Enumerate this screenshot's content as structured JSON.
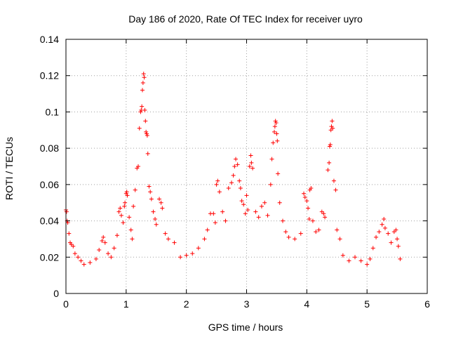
{
  "chart_data": {
    "type": "scatter",
    "title": "Day 186 of 2020, Rate Of TEC Index for receiver uyro",
    "xlabel": "GPS time / hours",
    "ylabel": "ROTI / TECUs",
    "xlim": [
      0,
      6
    ],
    "ylim": [
      0,
      0.14
    ],
    "x_ticks": [
      0,
      1,
      2,
      3,
      4,
      5,
      6
    ],
    "x_tick_labels": [
      "0",
      "1",
      "2",
      "3",
      "4",
      "5",
      "6"
    ],
    "y_ticks": [
      0,
      0.02,
      0.04,
      0.06,
      0.08,
      0.1,
      0.12,
      0.14
    ],
    "y_tick_labels": [
      "0",
      "0.02",
      "0.04",
      "0.06",
      "0.08",
      "0.1",
      "0.12",
      "0.14"
    ],
    "grid": true,
    "marker": "+",
    "color": "#ff0000",
    "series": [
      {
        "name": "ROTI",
        "points": [
          [
            0.0,
            0.046
          ],
          [
            0.01,
            0.045
          ],
          [
            0.02,
            0.04
          ],
          [
            0.03,
            0.039
          ],
          [
            0.05,
            0.033
          ],
          [
            0.07,
            0.028
          ],
          [
            0.09,
            0.027
          ],
          [
            0.12,
            0.026
          ],
          [
            0.15,
            0.022
          ],
          [
            0.2,
            0.02
          ],
          [
            0.25,
            0.018
          ],
          [
            0.3,
            0.016
          ],
          [
            0.4,
            0.017
          ],
          [
            0.5,
            0.019
          ],
          [
            0.55,
            0.024
          ],
          [
            0.6,
            0.029
          ],
          [
            0.62,
            0.031
          ],
          [
            0.65,
            0.028
          ],
          [
            0.7,
            0.022
          ],
          [
            0.75,
            0.02
          ],
          [
            0.8,
            0.025
          ],
          [
            0.85,
            0.032
          ],
          [
            0.88,
            0.045
          ],
          [
            0.9,
            0.047
          ],
          [
            0.92,
            0.043
          ],
          [
            0.95,
            0.039
          ],
          [
            0.97,
            0.048
          ],
          [
            0.98,
            0.05
          ],
          [
            1.0,
            0.055
          ],
          [
            1.01,
            0.056
          ],
          [
            1.02,
            0.054
          ],
          [
            1.05,
            0.042
          ],
          [
            1.08,
            0.035
          ],
          [
            1.1,
            0.03
          ],
          [
            1.12,
            0.048
          ],
          [
            1.15,
            0.057
          ],
          [
            1.18,
            0.069
          ],
          [
            1.2,
            0.07
          ],
          [
            1.22,
            0.091
          ],
          [
            1.24,
            0.1
          ],
          [
            1.25,
            0.101
          ],
          [
            1.26,
            0.103
          ],
          [
            1.27,
            0.112
          ],
          [
            1.28,
            0.116
          ],
          [
            1.29,
            0.121
          ],
          [
            1.3,
            0.119
          ],
          [
            1.31,
            0.101
          ],
          [
            1.32,
            0.095
          ],
          [
            1.33,
            0.089
          ],
          [
            1.34,
            0.088
          ],
          [
            1.35,
            0.087
          ],
          [
            1.36,
            0.077
          ],
          [
            1.38,
            0.059
          ],
          [
            1.4,
            0.056
          ],
          [
            1.42,
            0.052
          ],
          [
            1.45,
            0.045
          ],
          [
            1.48,
            0.041
          ],
          [
            1.5,
            0.038
          ],
          [
            1.55,
            0.052
          ],
          [
            1.58,
            0.05
          ],
          [
            1.6,
            0.047
          ],
          [
            1.65,
            0.033
          ],
          [
            1.7,
            0.03
          ],
          [
            1.8,
            0.028
          ],
          [
            1.9,
            0.02
          ],
          [
            2.0,
            0.021
          ],
          [
            2.1,
            0.022
          ],
          [
            2.2,
            0.025
          ],
          [
            2.3,
            0.03
          ],
          [
            2.35,
            0.035
          ],
          [
            2.4,
            0.044
          ],
          [
            2.45,
            0.044
          ],
          [
            2.48,
            0.039
          ],
          [
            2.5,
            0.06
          ],
          [
            2.52,
            0.062
          ],
          [
            2.55,
            0.056
          ],
          [
            2.6,
            0.045
          ],
          [
            2.65,
            0.04
          ],
          [
            2.7,
            0.058
          ],
          [
            2.75,
            0.061
          ],
          [
            2.78,
            0.065
          ],
          [
            2.8,
            0.07
          ],
          [
            2.82,
            0.074
          ],
          [
            2.85,
            0.071
          ],
          [
            2.88,
            0.062
          ],
          [
            2.9,
            0.058
          ],
          [
            2.92,
            0.051
          ],
          [
            2.95,
            0.049
          ],
          [
            2.98,
            0.044
          ],
          [
            3.0,
            0.054
          ],
          [
            3.02,
            0.046
          ],
          [
            3.05,
            0.07
          ],
          [
            3.07,
            0.076
          ],
          [
            3.08,
            0.072
          ],
          [
            3.1,
            0.069
          ],
          [
            3.15,
            0.045
          ],
          [
            3.2,
            0.042
          ],
          [
            3.25,
            0.048
          ],
          [
            3.3,
            0.05
          ],
          [
            3.35,
            0.043
          ],
          [
            3.4,
            0.06
          ],
          [
            3.42,
            0.074
          ],
          [
            3.44,
            0.083
          ],
          [
            3.46,
            0.089
          ],
          [
            3.47,
            0.092
          ],
          [
            3.48,
            0.095
          ],
          [
            3.49,
            0.094
          ],
          [
            3.5,
            0.088
          ],
          [
            3.51,
            0.084
          ],
          [
            3.52,
            0.066
          ],
          [
            3.55,
            0.05
          ],
          [
            3.6,
            0.04
          ],
          [
            3.65,
            0.034
          ],
          [
            3.7,
            0.031
          ],
          [
            3.8,
            0.03
          ],
          [
            3.9,
            0.033
          ],
          [
            3.95,
            0.055
          ],
          [
            3.97,
            0.053
          ],
          [
            4.0,
            0.051
          ],
          [
            4.02,
            0.047
          ],
          [
            4.04,
            0.041
          ],
          [
            4.05,
            0.057
          ],
          [
            4.07,
            0.058
          ],
          [
            4.1,
            0.04
          ],
          [
            4.15,
            0.034
          ],
          [
            4.2,
            0.035
          ],
          [
            4.25,
            0.045
          ],
          [
            4.28,
            0.044
          ],
          [
            4.3,
            0.042
          ],
          [
            4.35,
            0.068
          ],
          [
            4.37,
            0.072
          ],
          [
            4.38,
            0.081
          ],
          [
            4.39,
            0.082
          ],
          [
            4.4,
            0.09
          ],
          [
            4.41,
            0.092
          ],
          [
            4.42,
            0.095
          ],
          [
            4.43,
            0.091
          ],
          [
            4.45,
            0.062
          ],
          [
            4.48,
            0.057
          ],
          [
            4.5,
            0.035
          ],
          [
            4.55,
            0.03
          ],
          [
            4.6,
            0.021
          ],
          [
            4.7,
            0.018
          ],
          [
            4.8,
            0.02
          ],
          [
            4.9,
            0.018
          ],
          [
            5.0,
            0.016
          ],
          [
            5.05,
            0.019
          ],
          [
            5.1,
            0.025
          ],
          [
            5.15,
            0.031
          ],
          [
            5.2,
            0.034
          ],
          [
            5.25,
            0.038
          ],
          [
            5.28,
            0.041
          ],
          [
            5.3,
            0.036
          ],
          [
            5.35,
            0.033
          ],
          [
            5.4,
            0.028
          ],
          [
            5.45,
            0.034
          ],
          [
            5.48,
            0.035
          ],
          [
            5.5,
            0.03
          ],
          [
            5.52,
            0.026
          ],
          [
            5.55,
            0.019
          ]
        ]
      }
    ]
  }
}
